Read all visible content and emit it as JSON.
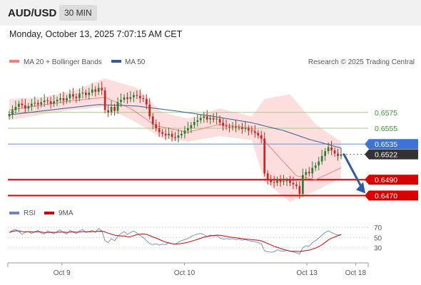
{
  "header": {
    "symbol": "AUD/USD",
    "timeframe": "30 MIN",
    "datetime": "Monday, October 13, 2025 7:07:15 AM CET"
  },
  "legend": {
    "ma20_label": "MA 20 + Bollinger Bands",
    "ma50_label": "MA 50",
    "credit": "Research © 2025 Trading Central",
    "ma20_color": "#f08080",
    "ma50_color": "#335c99"
  },
  "rsi_legend": {
    "rsi_label": "RSI",
    "ma_label": "9MA",
    "rsi_color": "#6d86c8",
    "ma_color": "#d90000"
  },
  "levels": [
    {
      "value": 0.6575,
      "label": "0.6575",
      "style": "light-green"
    },
    {
      "value": 0.6555,
      "label": "0.6555",
      "style": "light-green"
    },
    {
      "value": 0.6535,
      "label": "0.6535",
      "style": "blue"
    },
    {
      "value": 0.6522,
      "label": "0.6522",
      "style": "last-price"
    },
    {
      "value": 0.649,
      "label": "0.6490",
      "style": "red"
    },
    {
      "value": 0.647,
      "label": "0.6470",
      "style": "red"
    }
  ],
  "x_ticks": [
    {
      "t": 0.15,
      "label": "Oct 9"
    },
    {
      "t": 0.49,
      "label": "Oct 10"
    },
    {
      "t": 0.83,
      "label": "Oct 13"
    },
    {
      "t": 0.965,
      "label": "Oct 18"
    }
  ],
  "rsi_ticks": [
    "70",
    "50",
    "30"
  ],
  "chart_data": {
    "type": "candlestick",
    "instrument": "AUD/USD",
    "timeframe": "30 MIN",
    "ylim": [
      0.6456,
      0.6618
    ],
    "close_path": [
      0.6573,
      0.6578,
      0.6582,
      0.6586,
      0.6584,
      0.658,
      0.6583,
      0.6586,
      0.6587,
      0.6585,
      0.6588,
      0.659,
      0.6589,
      0.6586,
      0.6589,
      0.6591,
      0.6593,
      0.659,
      0.6593,
      0.6598,
      0.6595,
      0.6593,
      0.6599,
      0.66,
      0.6597,
      0.66,
      0.6604,
      0.6601,
      0.6606,
      0.6603,
      0.6578,
      0.6575,
      0.6582,
      0.6577,
      0.6588,
      0.6591,
      0.6594,
      0.6592,
      0.6594,
      0.6597,
      0.6596,
      0.6593,
      0.6592,
      0.6585,
      0.657,
      0.656,
      0.6555,
      0.655,
      0.6548,
      0.6546,
      0.6548,
      0.6544,
      0.6543,
      0.6546,
      0.6548,
      0.6552,
      0.6555,
      0.6559,
      0.6563,
      0.6565,
      0.6568,
      0.657,
      0.6566,
      0.6568,
      0.6566,
      0.6567,
      0.6562,
      0.6558,
      0.6557,
      0.6556,
      0.6557,
      0.6556,
      0.6556,
      0.6554,
      0.6555,
      0.6552,
      0.6551,
      0.6549,
      0.6546,
      0.6542,
      0.6498,
      0.649,
      0.6487,
      0.6486,
      0.649,
      0.6487,
      0.6488,
      0.6489,
      0.6486,
      0.6484,
      0.6482,
      0.6472,
      0.6496,
      0.65,
      0.6498,
      0.6505,
      0.6508,
      0.6513,
      0.652,
      0.6526,
      0.6531,
      0.6527,
      0.6523,
      0.652,
      0.6522
    ],
    "forecast_target": 0.647,
    "ma50": [
      [
        0,
        0.6572
      ],
      [
        15,
        0.6579
      ],
      [
        28,
        0.6585
      ],
      [
        40,
        0.6583
      ],
      [
        52,
        0.6577
      ],
      [
        64,
        0.657
      ],
      [
        76,
        0.6562
      ],
      [
        86,
        0.6552
      ],
      [
        94,
        0.6541
      ],
      [
        104,
        0.653
      ]
    ],
    "ma20": [
      [
        0,
        0.6578
      ],
      [
        10,
        0.6584
      ],
      [
        20,
        0.659
      ],
      [
        30,
        0.6594
      ],
      [
        38,
        0.658
      ],
      [
        46,
        0.6558
      ],
      [
        56,
        0.655
      ],
      [
        66,
        0.656
      ],
      [
        76,
        0.6555
      ],
      [
        82,
        0.653
      ],
      [
        90,
        0.6495
      ],
      [
        96,
        0.649
      ],
      [
        104,
        0.6505
      ]
    ],
    "bollinger_upper": [
      [
        0,
        0.6592
      ],
      [
        10,
        0.6594
      ],
      [
        20,
        0.6602
      ],
      [
        30,
        0.6618
      ],
      [
        40,
        0.6606
      ],
      [
        48,
        0.6575
      ],
      [
        56,
        0.6567
      ],
      [
        66,
        0.658
      ],
      [
        76,
        0.657
      ],
      [
        80,
        0.6592
      ],
      [
        88,
        0.6598
      ],
      [
        96,
        0.656
      ],
      [
        104,
        0.6538
      ]
    ],
    "bollinger_lower": [
      [
        0,
        0.6565
      ],
      [
        10,
        0.6572
      ],
      [
        20,
        0.6578
      ],
      [
        30,
        0.6582
      ],
      [
        40,
        0.6562
      ],
      [
        48,
        0.6542
      ],
      [
        56,
        0.6538
      ],
      [
        66,
        0.6545
      ],
      [
        76,
        0.654
      ],
      [
        80,
        0.6488
      ],
      [
        88,
        0.6462
      ],
      [
        96,
        0.6476
      ],
      [
        104,
        0.6492
      ]
    ],
    "rsi": [
      60,
      64,
      66,
      62,
      56,
      60,
      62,
      58,
      61,
      64,
      59,
      57,
      63,
      60,
      58,
      62,
      65,
      60,
      57,
      64,
      61,
      58,
      63,
      66,
      60,
      62,
      64,
      60,
      68,
      63,
      44,
      40,
      48,
      44,
      52,
      58,
      62,
      56,
      60,
      63,
      59,
      54,
      50,
      44,
      38,
      36,
      38,
      35,
      37,
      36,
      40,
      38,
      37,
      41,
      44,
      46,
      48,
      52,
      55,
      57,
      58,
      56,
      52,
      55,
      53,
      54,
      49,
      47,
      48,
      47,
      48,
      46,
      47,
      45,
      46,
      44,
      43,
      42,
      40,
      38,
      24,
      22,
      21,
      22,
      26,
      24,
      23,
      25,
      23,
      22,
      20,
      18,
      30,
      34,
      33,
      40,
      44,
      49,
      55,
      60,
      63,
      60,
      57,
      55,
      56
    ],
    "rsi_ylim": [
      10,
      80
    ]
  }
}
